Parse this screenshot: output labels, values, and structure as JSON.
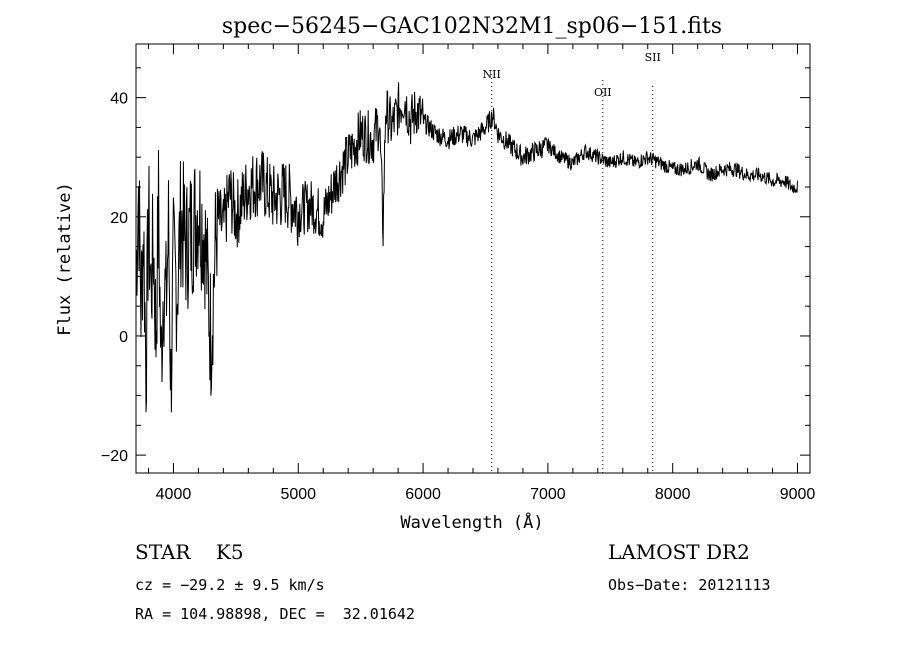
{
  "chart_data": {
    "type": "line",
    "title": "spec−56245−GAC102N32M1_sp06−151.fits",
    "xlabel": "Wavelength (Å)",
    "ylabel": "Flux (relative)",
    "xlim": [
      3700,
      9100
    ],
    "ylim": [
      -23,
      49
    ],
    "xticks": [
      4000,
      5000,
      6000,
      7000,
      8000,
      9000
    ],
    "yticks": [
      -20,
      0,
      20,
      40
    ],
    "ytick_labels": [
      "−20",
      "0",
      "20",
      "40"
    ],
    "grid": false,
    "series": [
      {
        "x": [
          3700,
          3720,
          3740,
          3760,
          3780,
          3800,
          3820,
          3840,
          3860,
          3880,
          3900,
          3920,
          3940,
          3960,
          3980,
          4000,
          4030,
          4060,
          4100,
          4150,
          4200,
          4250,
          4300,
          4350,
          4400,
          4450,
          4500,
          4600,
          4700,
          4800,
          4900,
          5000,
          5100,
          5200,
          5300,
          5400,
          5500,
          5600,
          5650,
          5680,
          5700,
          5750,
          5800,
          5850,
          5900,
          5950,
          6000,
          6100,
          6200,
          6300,
          6400,
          6500,
          6560,
          6600,
          6700,
          6800,
          6900,
          7000,
          7100,
          7200,
          7300,
          7400,
          7500,
          7600,
          7700,
          7800,
          7900,
          8000,
          8100,
          8200,
          8300,
          8400,
          8500,
          8600,
          8700,
          8800,
          8900,
          8950,
          9000
        ],
        "y": [
          10,
          25,
          5,
          18,
          -5,
          20,
          8,
          15,
          0,
          22,
          -5,
          10,
          5,
          18,
          -8,
          12,
          8,
          20,
          15,
          18,
          22,
          17,
          0,
          20,
          18,
          24,
          20,
          25,
          26,
          23,
          24,
          21,
          22,
          20,
          26,
          30,
          34,
          33,
          36,
          18,
          38,
          35,
          38,
          40,
          36,
          38,
          36,
          34,
          33,
          34,
          33,
          35,
          37,
          34,
          32,
          30,
          31,
          32,
          30,
          29,
          31,
          30,
          29,
          30,
          29,
          30,
          29,
          28,
          28,
          29,
          27,
          28,
          28,
          27,
          27,
          26,
          26,
          25,
          25
        ]
      }
    ],
    "emission_lines": [
      {
        "name": "NII",
        "wavelength": 6550
      },
      {
        "name": "OII",
        "wavelength": 7440
      },
      {
        "name": "SII",
        "wavelength": 7840
      }
    ]
  },
  "info": {
    "class_label": "STAR",
    "subclass": "K5",
    "survey": "LAMOST DR2",
    "cz": "cz = −29.2 ± 9.5 km/s",
    "obs_date": "Obs−Date: 20121113",
    "coords": "RA = 104.98898, DEC =  32.01642"
  }
}
